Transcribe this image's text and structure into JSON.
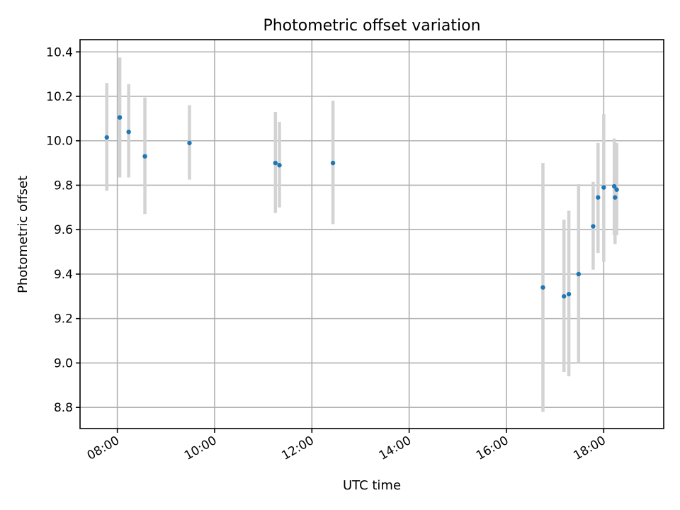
{
  "chart_data": {
    "type": "scatter",
    "title": "Photometric offset variation",
    "xlabel": "UTC time",
    "ylabel": "Photometric offset",
    "x_axis_type": "time",
    "xlim": [
      "07:14",
      "19:14"
    ],
    "ylim": [
      8.705,
      10.455
    ],
    "x_ticks": [
      "08:00",
      "10:00",
      "12:00",
      "14:00",
      "16:00",
      "18:00"
    ],
    "y_ticks": [
      8.8,
      9.0,
      9.2,
      9.4,
      9.6,
      9.8,
      10.0,
      10.2,
      10.4
    ],
    "y_tick_labels": [
      "8.8",
      "9.0",
      "9.2",
      "9.4",
      "9.6",
      "9.8",
      "10.0",
      "10.2",
      "10.4"
    ],
    "grid": true,
    "x_tick_label_rotation": "30deg",
    "colors": {
      "points": "#1f77b4",
      "errorbars": "#d3d3d3",
      "grid": "#b0b0b0"
    },
    "points": [
      {
        "x": "07:47",
        "y": 10.015,
        "ylow": 9.775,
        "yhigh": 10.26
      },
      {
        "x": "08:03",
        "y": 10.105,
        "ylow": 9.835,
        "yhigh": 10.375
      },
      {
        "x": "08:14",
        "y": 10.04,
        "ylow": 9.835,
        "yhigh": 10.255
      },
      {
        "x": "08:34",
        "y": 9.93,
        "ylow": 9.67,
        "yhigh": 10.195
      },
      {
        "x": "09:29",
        "y": 9.99,
        "ylow": 9.825,
        "yhigh": 10.16
      },
      {
        "x": "11:15",
        "y": 9.9,
        "ylow": 9.675,
        "yhigh": 10.13
      },
      {
        "x": "11:20",
        "y": 9.89,
        "ylow": 9.7,
        "yhigh": 10.085
      },
      {
        "x": "12:26",
        "y": 9.9,
        "ylow": 9.625,
        "yhigh": 10.18
      },
      {
        "x": "16:45",
        "y": 9.34,
        "ylow": 8.78,
        "yhigh": 9.9
      },
      {
        "x": "17:11",
        "y": 9.3,
        "ylow": 8.96,
        "yhigh": 9.645
      },
      {
        "x": "17:17",
        "y": 9.31,
        "ylow": 8.94,
        "yhigh": 9.685
      },
      {
        "x": "17:29",
        "y": 9.4,
        "ylow": 9.0,
        "yhigh": 9.805
      },
      {
        "x": "17:47",
        "y": 9.615,
        "ylow": 9.42,
        "yhigh": 9.815
      },
      {
        "x": "17:53",
        "y": 9.745,
        "ylow": 9.495,
        "yhigh": 9.99
      },
      {
        "x": "18:00",
        "y": 9.79,
        "ylow": 9.455,
        "yhigh": 10.12
      },
      {
        "x": "18:13",
        "y": 9.795,
        "ylow": 9.575,
        "yhigh": 10.01
      },
      {
        "x": "18:14",
        "y": 9.745,
        "ylow": 9.535,
        "yhigh": 9.955
      },
      {
        "x": "18:16",
        "y": 9.78,
        "ylow": 9.575,
        "yhigh": 9.99
      }
    ]
  }
}
